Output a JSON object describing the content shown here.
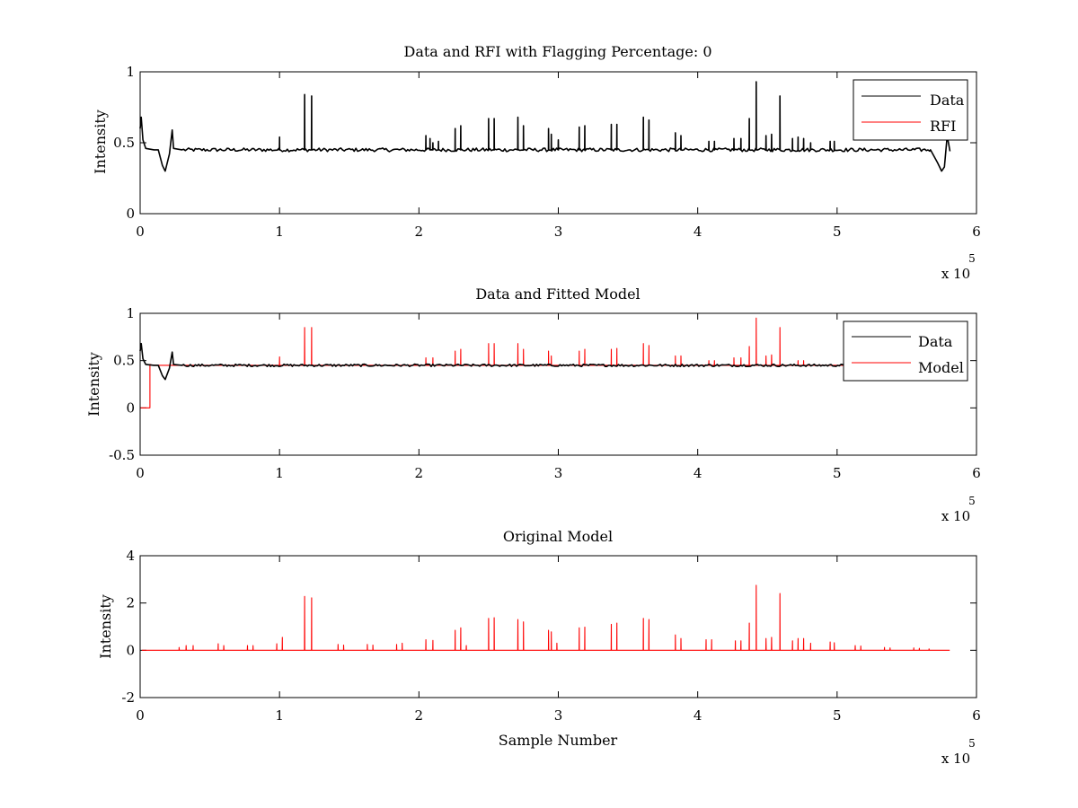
{
  "figure": {
    "background": "#ffffff",
    "colors": {
      "data": "#000000",
      "rfi": "#ff0000",
      "model": "#ff0000"
    }
  },
  "chart_data": [
    {
      "type": "line",
      "title": "Data and RFI with Flagging Percentage: 0",
      "xlabel": "",
      "ylabel": "Intensity",
      "xlim": [
        0,
        6
      ],
      "ylim": [
        0,
        1
      ],
      "xticks": [
        "0",
        "1",
        "2",
        "3",
        "4",
        "5",
        "6"
      ],
      "yticks": [
        "0",
        "0.5",
        "1"
      ],
      "xexponent": "x 10",
      "xexponent_power": "5",
      "legend": {
        "placement": "top-right",
        "entries": [
          "Data",
          "RFI"
        ]
      },
      "series": [
        {
          "name": "Data",
          "color": "#000000",
          "baseline": 0.45,
          "dip_shape": [
            [
              0.0,
              0.6
            ],
            [
              0.008,
              0.68
            ],
            [
              0.02,
              0.52
            ],
            [
              0.04,
              0.46
            ],
            [
              0.1,
              0.45
            ],
            [
              0.13,
              0.45
            ],
            [
              0.16,
              0.34
            ],
            [
              0.18,
              0.3
            ],
            [
              0.21,
              0.42
            ],
            [
              0.23,
              0.59
            ],
            [
              0.24,
              0.46
            ],
            [
              0.3,
              0.45
            ]
          ],
          "end_shape": [
            [
              5.67,
              0.45
            ],
            [
              5.72,
              0.36
            ],
            [
              5.75,
              0.3
            ],
            [
              5.77,
              0.33
            ],
            [
              5.79,
              0.55
            ],
            [
              5.81,
              0.44
            ]
          ],
          "spikes": [
            [
              1.0,
              0.54
            ],
            [
              1.18,
              0.84
            ],
            [
              1.23,
              0.83
            ],
            [
              2.05,
              0.55
            ],
            [
              2.08,
              0.53
            ],
            [
              2.1,
              0.5
            ],
            [
              2.14,
              0.51
            ],
            [
              2.26,
              0.6
            ],
            [
              2.3,
              0.62
            ],
            [
              2.5,
              0.67
            ],
            [
              2.54,
              0.67
            ],
            [
              2.71,
              0.68
            ],
            [
              2.75,
              0.62
            ],
            [
              2.93,
              0.6
            ],
            [
              2.95,
              0.56
            ],
            [
              3.0,
              0.52
            ],
            [
              3.15,
              0.61
            ],
            [
              3.19,
              0.62
            ],
            [
              3.38,
              0.63
            ],
            [
              3.42,
              0.63
            ],
            [
              3.61,
              0.68
            ],
            [
              3.65,
              0.66
            ],
            [
              3.84,
              0.57
            ],
            [
              3.88,
              0.55
            ],
            [
              4.08,
              0.51
            ],
            [
              4.12,
              0.51
            ],
            [
              4.26,
              0.53
            ],
            [
              4.31,
              0.53
            ],
            [
              4.37,
              0.67
            ],
            [
              4.42,
              0.93
            ],
            [
              4.49,
              0.55
            ],
            [
              4.53,
              0.56
            ],
            [
              4.59,
              0.83
            ],
            [
              4.68,
              0.53
            ],
            [
              4.72,
              0.54
            ],
            [
              4.76,
              0.53
            ],
            [
              4.81,
              0.5
            ],
            [
              4.95,
              0.51
            ],
            [
              4.98,
              0.51
            ]
          ]
        },
        {
          "name": "RFI",
          "color": "#ff0000",
          "values": []
        }
      ]
    },
    {
      "type": "line",
      "title": "Data and Fitted Model",
      "xlabel": "",
      "ylabel": "Intensity",
      "xlim": [
        0,
        6
      ],
      "ylim": [
        -0.5,
        1
      ],
      "xticks": [
        "0",
        "1",
        "2",
        "3",
        "4",
        "5",
        "6"
      ],
      "yticks": [
        "-0.5",
        "0",
        "0.5",
        "1"
      ],
      "xexponent": "x 10",
      "xexponent_power": "5",
      "legend": {
        "placement": "top-right",
        "entries": [
          "Data",
          "Model"
        ]
      },
      "series": [
        {
          "name": "Model",
          "color": "#ff0000",
          "baseline": 0.45,
          "start_shape": [
            [
              0.0,
              0.0
            ],
            [
              0.07,
              0.0
            ],
            [
              0.07,
              0.46
            ],
            [
              0.09,
              0.45
            ]
          ],
          "spikes": [
            [
              1.0,
              0.54
            ],
            [
              1.18,
              0.85
            ],
            [
              1.23,
              0.85
            ],
            [
              2.05,
              0.53
            ],
            [
              2.1,
              0.53
            ],
            [
              2.26,
              0.6
            ],
            [
              2.3,
              0.62
            ],
            [
              2.5,
              0.68
            ],
            [
              2.54,
              0.68
            ],
            [
              2.71,
              0.68
            ],
            [
              2.75,
              0.62
            ],
            [
              2.93,
              0.6
            ],
            [
              2.95,
              0.55
            ],
            [
              3.15,
              0.6
            ],
            [
              3.19,
              0.62
            ],
            [
              3.38,
              0.62
            ],
            [
              3.42,
              0.63
            ],
            [
              3.61,
              0.68
            ],
            [
              3.65,
              0.66
            ],
            [
              3.84,
              0.55
            ],
            [
              3.88,
              0.55
            ],
            [
              4.08,
              0.5
            ],
            [
              4.12,
              0.5
            ],
            [
              4.26,
              0.53
            ],
            [
              4.31,
              0.53
            ],
            [
              4.37,
              0.65
            ],
            [
              4.42,
              0.95
            ],
            [
              4.49,
              0.55
            ],
            [
              4.53,
              0.56
            ],
            [
              4.59,
              0.85
            ],
            [
              4.72,
              0.5
            ],
            [
              4.76,
              0.5
            ]
          ]
        },
        {
          "name": "Data",
          "color": "#000000",
          "baseline": 0.45,
          "dip_shape": [
            [
              0.0,
              0.6
            ],
            [
              0.008,
              0.68
            ],
            [
              0.02,
              0.52
            ],
            [
              0.04,
              0.46
            ],
            [
              0.1,
              0.45
            ],
            [
              0.13,
              0.45
            ],
            [
              0.16,
              0.34
            ],
            [
              0.18,
              0.3
            ],
            [
              0.21,
              0.42
            ],
            [
              0.23,
              0.59
            ],
            [
              0.24,
              0.46
            ],
            [
              0.3,
              0.45
            ]
          ],
          "spikes": []
        }
      ]
    },
    {
      "type": "line",
      "title": "Original Model",
      "xlabel": "Sample Number",
      "ylabel": "Intensity",
      "xlim": [
        0,
        6
      ],
      "ylim": [
        -2,
        4
      ],
      "xticks": [
        "0",
        "1",
        "2",
        "3",
        "4",
        "5",
        "6"
      ],
      "yticks": [
        "-2",
        "0",
        "2",
        "4"
      ],
      "xexponent": "x 10",
      "xexponent_power": "5",
      "series": [
        {
          "color": "#ff0000",
          "baseline": 0.0,
          "x_end": 5.81,
          "spikes": [
            [
              0.28,
              0.12
            ],
            [
              0.33,
              0.2
            ],
            [
              0.38,
              0.2
            ],
            [
              0.56,
              0.28
            ],
            [
              0.6,
              0.2
            ],
            [
              0.77,
              0.2
            ],
            [
              0.81,
              0.2
            ],
            [
              0.98,
              0.28
            ],
            [
              1.02,
              0.55
            ],
            [
              1.18,
              2.28
            ],
            [
              1.23,
              2.22
            ],
            [
              1.42,
              0.25
            ],
            [
              1.46,
              0.22
            ],
            [
              1.63,
              0.25
            ],
            [
              1.67,
              0.22
            ],
            [
              1.84,
              0.25
            ],
            [
              1.88,
              0.3
            ],
            [
              2.05,
              0.45
            ],
            [
              2.1,
              0.42
            ],
            [
              2.26,
              0.85
            ],
            [
              2.3,
              0.95
            ],
            [
              2.34,
              0.2
            ],
            [
              2.5,
              1.35
            ],
            [
              2.54,
              1.38
            ],
            [
              2.71,
              1.3
            ],
            [
              2.75,
              1.2
            ],
            [
              2.93,
              0.85
            ],
            [
              2.95,
              0.78
            ],
            [
              2.99,
              0.3
            ],
            [
              3.15,
              0.95
            ],
            [
              3.19,
              0.98
            ],
            [
              3.38,
              1.1
            ],
            [
              3.42,
              1.15
            ],
            [
              3.61,
              1.35
            ],
            [
              3.65,
              1.3
            ],
            [
              3.84,
              0.65
            ],
            [
              3.88,
              0.5
            ],
            [
              4.06,
              0.45
            ],
            [
              4.1,
              0.45
            ],
            [
              4.27,
              0.4
            ],
            [
              4.31,
              0.4
            ],
            [
              4.37,
              1.15
            ],
            [
              4.42,
              2.75
            ],
            [
              4.49,
              0.5
            ],
            [
              4.53,
              0.55
            ],
            [
              4.59,
              2.4
            ],
            [
              4.68,
              0.4
            ],
            [
              4.72,
              0.5
            ],
            [
              4.76,
              0.5
            ],
            [
              4.81,
              0.3
            ],
            [
              4.95,
              0.35
            ],
            [
              4.98,
              0.32
            ],
            [
              5.13,
              0.2
            ],
            [
              5.17,
              0.18
            ],
            [
              5.34,
              0.12
            ],
            [
              5.38,
              0.1
            ],
            [
              5.55,
              0.1
            ],
            [
              5.59,
              0.08
            ],
            [
              5.66,
              0.06
            ]
          ]
        }
      ]
    }
  ]
}
